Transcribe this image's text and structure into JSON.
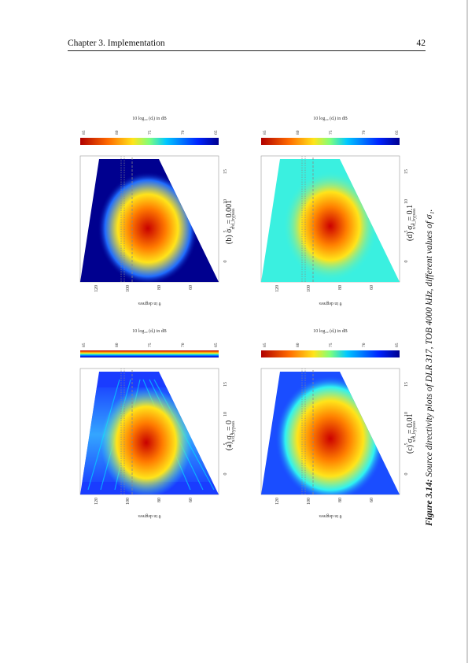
{
  "header": {
    "chapter": "Chapter 3.  Implementation",
    "page_number": "42"
  },
  "figure": {
    "caption_label": "Figure 3.14:",
    "caption_text": " Source directivity plots of DLR 317, TOB 4000 kHz, different values of σ₁.",
    "panels": [
      {
        "id": "a",
        "label": "(a) σ₁ = 0"
      },
      {
        "id": "b",
        "label": "(b) σ₁ = 0.001"
      },
      {
        "id": "c",
        "label": "(c) σ₁ = 0.01"
      },
      {
        "id": "d",
        "label": "(d) σ₁ = 0.1"
      }
    ],
    "axes": {
      "x_label": "x/d_bypass",
      "x_ticks": [
        "0",
        "5",
        "10",
        "15"
      ],
      "y_label": "θ in degrees",
      "y_ticks": [
        "120",
        "100",
        "80",
        "60"
      ],
      "colorbar_label": "10 log₁₀ (dᵢ) in dB",
      "colorbar_ticks": [
        "85",
        "80",
        "75",
        "70",
        "65"
      ]
    },
    "colors": {
      "dark_blue": "#00008f",
      "blue": "#0a3cff",
      "cyan": "#2ff2f2",
      "yellow": "#ffe41a",
      "orange": "#ff8c00",
      "red": "#e2140c"
    }
  }
}
